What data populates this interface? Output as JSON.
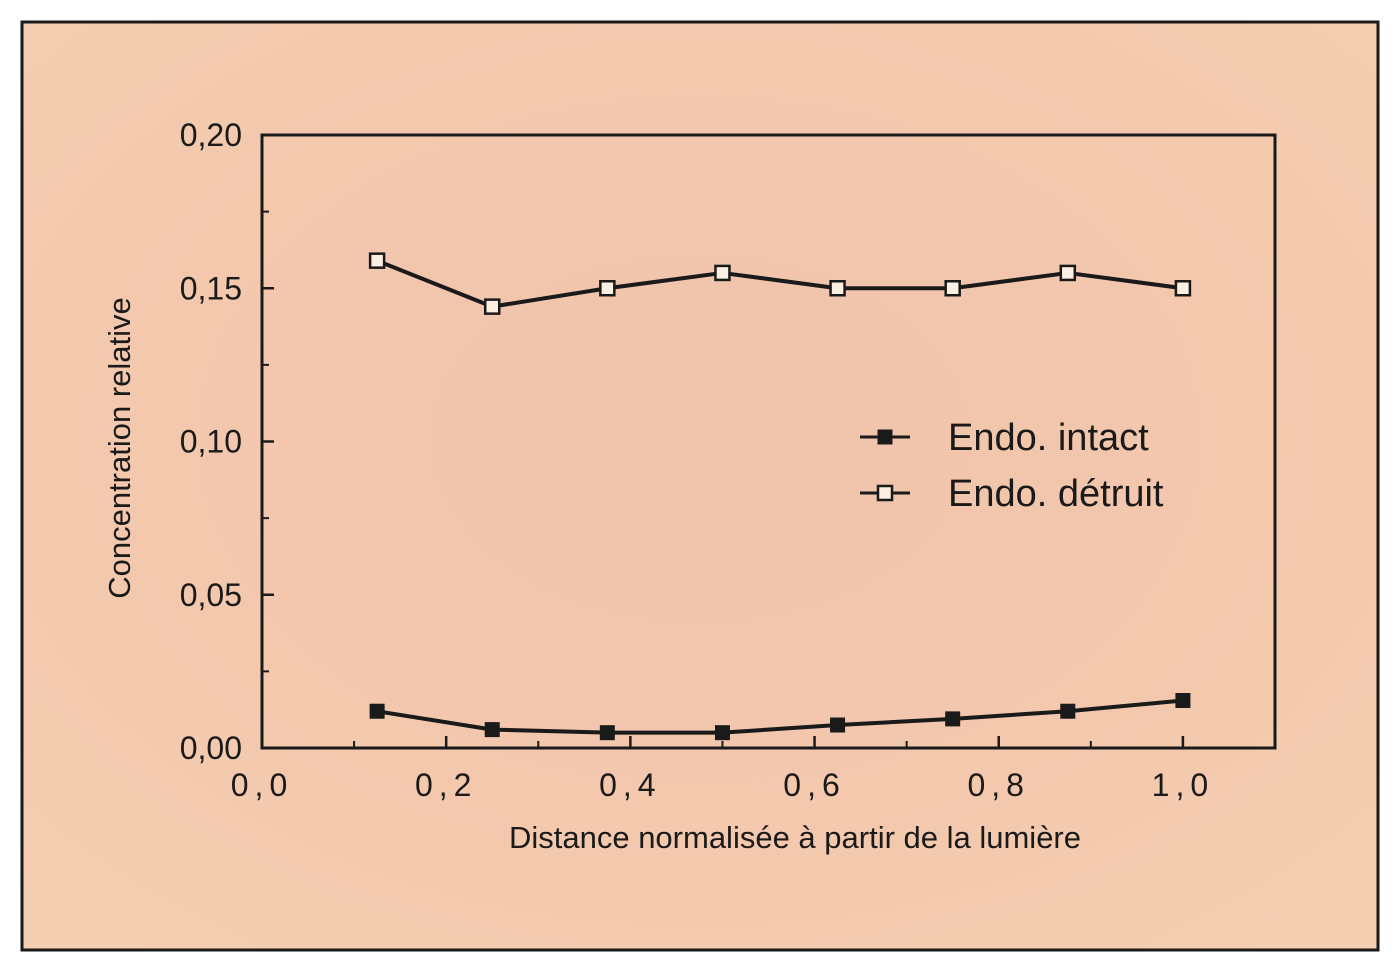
{
  "chart_data": {
    "type": "line",
    "title": "",
    "xlabel": "Distance normalisée à partir de la lumière",
    "ylabel": "Concentration relative",
    "xlim": [
      0.0,
      1.1
    ],
    "ylim": [
      0.0,
      0.2
    ],
    "x_ticks": [
      0.0,
      0.2,
      0.4,
      0.6,
      0.8,
      1.0
    ],
    "x_tick_labels": [
      "0,0",
      "0,2",
      "0,4",
      "0,6",
      "0,8",
      "1,0"
    ],
    "y_ticks": [
      0.0,
      0.05,
      0.1,
      0.15,
      0.2
    ],
    "y_tick_labels": [
      "0,00",
      "0,05",
      "0,10",
      "0,15",
      "0,20"
    ],
    "grid": false,
    "legend_position": "center-right",
    "x": [
      0.125,
      0.25,
      0.375,
      0.5,
      0.625,
      0.75,
      0.875,
      1.0
    ],
    "series": [
      {
        "name": "Endo. intact",
        "marker": "filled-square",
        "values": [
          0.012,
          0.006,
          0.005,
          0.005,
          0.0075,
          0.0095,
          0.012,
          0.0155
        ]
      },
      {
        "name": "Endo. détruit",
        "marker": "open-square",
        "values": [
          0.159,
          0.144,
          0.15,
          0.155,
          0.15,
          0.15,
          0.155,
          0.15
        ]
      }
    ],
    "colors": {
      "background": "#f2c4ab",
      "line": "#1a1a1a",
      "frame": "#1a1a1a"
    }
  }
}
